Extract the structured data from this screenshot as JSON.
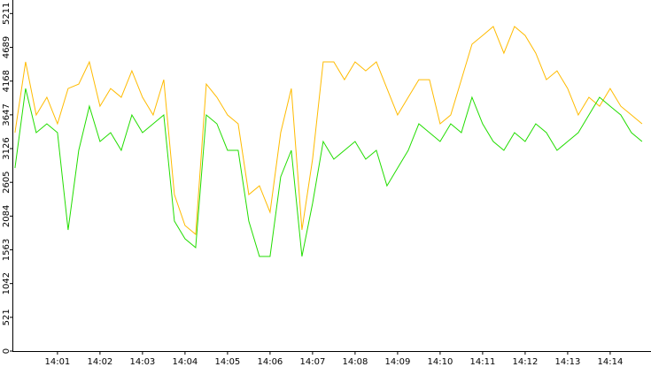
{
  "chart_data": {
    "type": "line",
    "x": [
      0,
      0.25,
      0.5,
      0.75,
      1,
      1.25,
      1.5,
      1.75,
      2,
      2.25,
      2.5,
      2.75,
      3,
      3.25,
      3.5,
      3.75,
      4,
      4.25,
      4.5,
      4.75,
      5,
      5.25,
      5.5,
      5.75,
      6,
      6.25,
      6.5,
      6.75,
      7,
      7.25,
      7.5,
      7.75,
      8,
      8.25,
      8.5,
      8.75,
      9,
      9.25,
      9.5,
      9.75,
      10,
      10.25,
      10.5,
      10.75,
      11,
      11.25,
      11.5,
      11.75,
      12,
      12.25,
      12.5,
      12.75,
      13,
      13.25,
      13.5,
      13.75,
      14,
      14.25,
      14.5,
      14.75
    ],
    "series": [
      {
        "color": "#ffbb00",
        "values": [
          3372,
          4464,
          3645,
          3918,
          3508,
          4054,
          4122,
          4464,
          3781,
          4054,
          3918,
          4327,
          3918,
          3645,
          4190,
          2416,
          1938,
          1802,
          4122,
          3918,
          3645,
          3508,
          2416,
          2552,
          2143,
          3372,
          4054,
          1870,
          2962,
          4464,
          4464,
          4190,
          4464,
          4327,
          4464,
          4054,
          3645,
          3918,
          4190,
          4190,
          3508,
          3645,
          4190,
          4737,
          4873,
          5010,
          4600,
          5010,
          4873,
          4600,
          4190,
          4327,
          4054,
          3645,
          3918,
          3781,
          4054,
          3781,
          3645,
          3508
        ]
      },
      {
        "color": "#22dd00",
        "values": [
          2826,
          4054,
          3372,
          3508,
          3372,
          1870,
          3099,
          3781,
          3235,
          3372,
          3099,
          3645,
          3372,
          3508,
          3645,
          2007,
          1734,
          1597,
          3645,
          3508,
          3099,
          3099,
          2007,
          1461,
          1461,
          2689,
          3099,
          1461,
          2280,
          3235,
          2962,
          3099,
          3235,
          2962,
          3099,
          2552,
          2826,
          3099,
          3508,
          3372,
          3235,
          3508,
          3372,
          3918,
          3508,
          3235,
          3099,
          3372,
          3235,
          3508,
          3372,
          3099,
          3235,
          3372,
          3645,
          3918,
          3781,
          3645,
          3372,
          3235
        ]
      }
    ],
    "xlim": [
      -0.06,
      14.96
    ],
    "xticks": [
      {
        "value": 1,
        "label": "14:01"
      },
      {
        "value": 2,
        "label": "14:02"
      },
      {
        "value": 3,
        "label": "14:03"
      },
      {
        "value": 4,
        "label": "14:04"
      },
      {
        "value": 5,
        "label": "14:05"
      },
      {
        "value": 6,
        "label": "14:06"
      },
      {
        "value": 7,
        "label": "14:07"
      },
      {
        "value": 8,
        "label": "14:08"
      },
      {
        "value": 9,
        "label": "14:09"
      },
      {
        "value": 10,
        "label": "14:10"
      },
      {
        "value": 11,
        "label": "14:11"
      },
      {
        "value": 12,
        "label": "14:12"
      },
      {
        "value": 13,
        "label": "14:13"
      },
      {
        "value": 14,
        "label": "14:14"
      }
    ],
    "ylim": [
      0,
      5420
    ],
    "yticks": [
      0,
      521,
      1042,
      1563,
      2084,
      2605,
      3126,
      3647,
      4168,
      4689,
      5211
    ]
  }
}
